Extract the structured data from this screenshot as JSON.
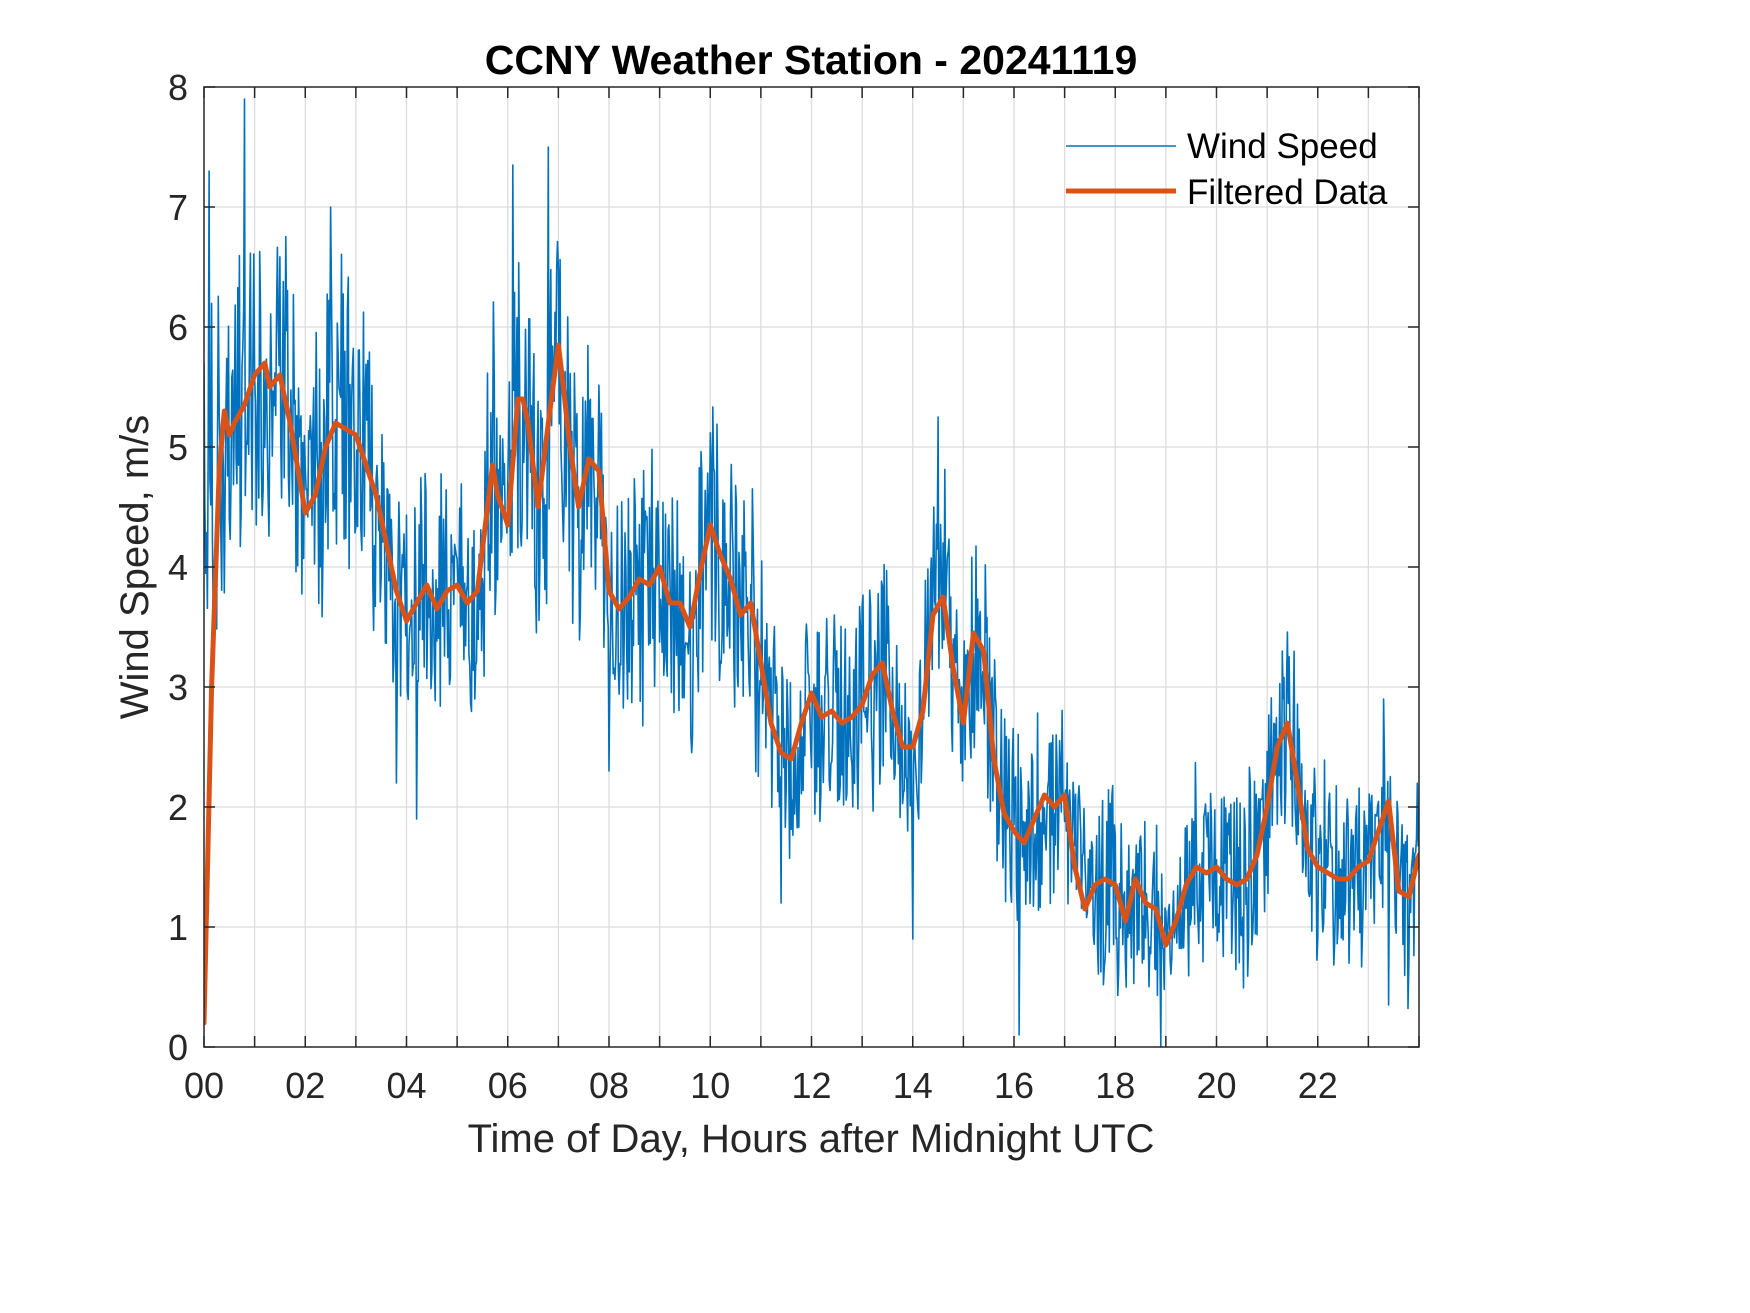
{
  "chart_data": {
    "type": "line",
    "title": "CCNY Weather Station - 20241119",
    "xlabel": "Time of Day, Hours after Midnight UTC",
    "ylabel": "Wind Speed, m/s",
    "xlim": [
      0,
      24
    ],
    "ylim": [
      0,
      8
    ],
    "xticks": [
      0,
      2,
      4,
      6,
      8,
      10,
      12,
      14,
      16,
      18,
      20,
      22
    ],
    "xtick_labels": [
      "00",
      "02",
      "04",
      "06",
      "08",
      "10",
      "12",
      "14",
      "16",
      "18",
      "20",
      "22"
    ],
    "yticks": [
      0,
      1,
      2,
      3,
      4,
      5,
      6,
      7,
      8
    ],
    "ytick_labels": [
      "0",
      "1",
      "2",
      "3",
      "4",
      "5",
      "6",
      "7",
      "8"
    ],
    "grid": true,
    "grid_minor_x_step_hours": 1,
    "legend": {
      "placement": "top-right",
      "entries": [
        "Wind Speed",
        "Filtered Data"
      ]
    },
    "series": [
      {
        "name": "Wind Speed",
        "color": "#0072BD",
        "style": "thin-noisy",
        "description": "Raw 1-minute wind speed; fluctuates roughly ±1.5 m/s around the filtered curve, max ~7.9 m/s near 00:50, min ~0 m/s near 19:00",
        "notable_peaks": [
          {
            "x": 0.1,
            "y": 7.3
          },
          {
            "x": 0.8,
            "y": 7.9
          },
          {
            "x": 2.5,
            "y": 7.0
          },
          {
            "x": 6.1,
            "y": 7.35
          },
          {
            "x": 6.8,
            "y": 7.5
          },
          {
            "x": 14.5,
            "y": 5.25
          },
          {
            "x": 21.3,
            "y": 3.3
          },
          {
            "x": 23.3,
            "y": 2.9
          }
        ],
        "notable_troughs": [
          {
            "x": 3.8,
            "y": 2.2
          },
          {
            "x": 4.2,
            "y": 1.9
          },
          {
            "x": 8.0,
            "y": 2.3
          },
          {
            "x": 11.4,
            "y": 1.2
          },
          {
            "x": 14.0,
            "y": 0.9
          },
          {
            "x": 16.1,
            "y": 0.1
          },
          {
            "x": 18.9,
            "y": 0.0
          },
          {
            "x": 23.4,
            "y": 0.35
          }
        ]
      },
      {
        "name": "Filtered Data",
        "color": "#D95319",
        "style": "thick",
        "x": [
          0.0,
          0.15,
          0.3,
          0.4,
          0.5,
          0.6,
          0.8,
          1.0,
          1.2,
          1.3,
          1.5,
          1.7,
          1.9,
          2.0,
          2.2,
          2.4,
          2.6,
          2.8,
          3.0,
          3.2,
          3.4,
          3.6,
          3.8,
          4.0,
          4.2,
          4.4,
          4.6,
          4.8,
          5.0,
          5.2,
          5.4,
          5.6,
          5.7,
          5.8,
          6.0,
          6.2,
          6.3,
          6.4,
          6.6,
          6.8,
          7.0,
          7.1,
          7.2,
          7.4,
          7.6,
          7.8,
          8.0,
          8.2,
          8.4,
          8.6,
          8.8,
          9.0,
          9.2,
          9.4,
          9.6,
          9.8,
          10.0,
          10.2,
          10.4,
          10.6,
          10.8,
          11.0,
          11.2,
          11.4,
          11.6,
          11.8,
          12.0,
          12.2,
          12.4,
          12.6,
          12.8,
          13.0,
          13.2,
          13.4,
          13.6,
          13.8,
          14.0,
          14.2,
          14.4,
          14.6,
          14.8,
          15.0,
          15.2,
          15.4,
          15.6,
          15.8,
          16.0,
          16.2,
          16.4,
          16.6,
          16.8,
          17.0,
          17.2,
          17.4,
          17.6,
          17.8,
          18.0,
          18.2,
          18.4,
          18.6,
          18.8,
          19.0,
          19.2,
          19.4,
          19.6,
          19.8,
          20.0,
          20.2,
          20.4,
          20.6,
          20.8,
          21.0,
          21.2,
          21.4,
          21.6,
          21.8,
          22.0,
          22.2,
          22.4,
          22.6,
          22.8,
          23.0,
          23.2,
          23.4,
          23.6,
          23.8,
          24.0
        ],
        "y": [
          0.2,
          3.0,
          4.8,
          5.3,
          5.1,
          5.2,
          5.35,
          5.6,
          5.7,
          5.5,
          5.6,
          5.2,
          4.7,
          4.45,
          4.6,
          5.0,
          5.2,
          5.15,
          5.1,
          4.85,
          4.6,
          4.2,
          3.8,
          3.55,
          3.7,
          3.85,
          3.65,
          3.8,
          3.85,
          3.7,
          3.8,
          4.5,
          4.85,
          4.6,
          4.35,
          5.4,
          5.4,
          5.2,
          4.5,
          5.2,
          5.85,
          5.5,
          5.1,
          4.5,
          4.9,
          4.8,
          3.8,
          3.65,
          3.75,
          3.9,
          3.85,
          4.0,
          3.7,
          3.7,
          3.5,
          3.95,
          4.35,
          4.1,
          3.9,
          3.6,
          3.7,
          3.2,
          2.7,
          2.45,
          2.4,
          2.7,
          2.95,
          2.75,
          2.8,
          2.7,
          2.75,
          2.85,
          3.1,
          3.2,
          2.8,
          2.5,
          2.5,
          2.8,
          3.6,
          3.75,
          3.15,
          2.7,
          3.45,
          3.3,
          2.4,
          1.95,
          1.8,
          1.7,
          1.9,
          2.1,
          2.0,
          2.1,
          1.5,
          1.15,
          1.35,
          1.4,
          1.35,
          1.05,
          1.4,
          1.2,
          1.15,
          0.85,
          1.05,
          1.35,
          1.5,
          1.45,
          1.5,
          1.4,
          1.35,
          1.4,
          1.6,
          2.0,
          2.5,
          2.7,
          2.2,
          1.65,
          1.5,
          1.45,
          1.4,
          1.4,
          1.5,
          1.55,
          1.8,
          2.05,
          1.3,
          1.25,
          1.6
        ]
      }
    ]
  }
}
